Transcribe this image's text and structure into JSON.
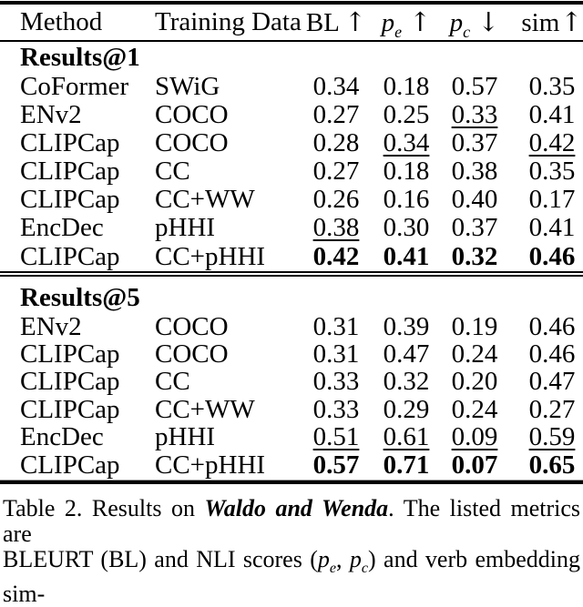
{
  "page": {
    "background": "#ffffff",
    "text_color": "#000000",
    "rule_color": "#000000"
  },
  "table": {
    "columns": [
      {
        "base": "Method",
        "sub": "",
        "arrow": ""
      },
      {
        "base": "Training Data",
        "sub": "",
        "arrow": ""
      },
      {
        "base": "BL",
        "sub": "",
        "arrow": "↑"
      },
      {
        "base": "p",
        "sub": "e",
        "arrow": "↑"
      },
      {
        "base": "p",
        "sub": "c",
        "arrow": "↓"
      },
      {
        "base": "sim",
        "sub": "",
        "arrow": "↑"
      }
    ],
    "sections": [
      {
        "heading": "Results@1",
        "rows": [
          {
            "method": "CoFormer",
            "training": "SWiG",
            "values": [
              {
                "v": "0.34"
              },
              {
                "v": "0.18"
              },
              {
                "v": "0.57"
              },
              {
                "v": "0.35"
              }
            ]
          },
          {
            "method": "ENv2",
            "training": "COCO",
            "values": [
              {
                "v": "0.27"
              },
              {
                "v": "0.25"
              },
              {
                "v": "0.33",
                "u": true
              },
              {
                "v": "0.41"
              }
            ]
          },
          {
            "method": "CLIPCap",
            "training": "COCO",
            "values": [
              {
                "v": "0.28"
              },
              {
                "v": "0.34",
                "u": true
              },
              {
                "v": "0.37"
              },
              {
                "v": "0.42",
                "u": true
              }
            ]
          },
          {
            "method": "CLIPCap",
            "training": "CC",
            "values": [
              {
                "v": "0.27"
              },
              {
                "v": "0.18"
              },
              {
                "v": "0.38"
              },
              {
                "v": "0.35"
              }
            ]
          },
          {
            "method": "CLIPCap",
            "training": "CC+WW",
            "values": [
              {
                "v": "0.26"
              },
              {
                "v": "0.16"
              },
              {
                "v": "0.40"
              },
              {
                "v": "0.17"
              }
            ]
          },
          {
            "method": "EncDec",
            "training": "pHHI",
            "values": [
              {
                "v": "0.38",
                "u": true
              },
              {
                "v": "0.30"
              },
              {
                "v": "0.37"
              },
              {
                "v": "0.41"
              }
            ]
          },
          {
            "method": "CLIPCap",
            "training": "CC+pHHI",
            "values": [
              {
                "v": "0.42",
                "b": true
              },
              {
                "v": "0.41",
                "b": true
              },
              {
                "v": "0.32",
                "b": true
              },
              {
                "v": "0.46",
                "b": true
              }
            ]
          }
        ]
      },
      {
        "heading": "Results@5",
        "rows": [
          {
            "method": "ENv2",
            "training": "COCO",
            "values": [
              {
                "v": "0.31"
              },
              {
                "v": "0.39"
              },
              {
                "v": "0.19"
              },
              {
                "v": "0.46"
              }
            ]
          },
          {
            "method": "CLIPCap",
            "training": "COCO",
            "values": [
              {
                "v": "0.31"
              },
              {
                "v": "0.47"
              },
              {
                "v": "0.24"
              },
              {
                "v": "0.46"
              }
            ]
          },
          {
            "method": "CLIPCap",
            "training": "CC",
            "values": [
              {
                "v": "0.33"
              },
              {
                "v": "0.32"
              },
              {
                "v": "0.20"
              },
              {
                "v": "0.47"
              }
            ]
          },
          {
            "method": "CLIPCap",
            "training": "CC+WW",
            "values": [
              {
                "v": "0.33"
              },
              {
                "v": "0.29"
              },
              {
                "v": "0.24"
              },
              {
                "v": "0.27"
              }
            ]
          },
          {
            "method": "EncDec",
            "training": "pHHI",
            "values": [
              {
                "v": "0.51",
                "u": true
              },
              {
                "v": "0.61",
                "u": true
              },
              {
                "v": "0.09",
                "u": true
              },
              {
                "v": "0.59",
                "u": true
              }
            ]
          },
          {
            "method": "CLIPCap",
            "training": "CC+pHHI",
            "values": [
              {
                "v": "0.57",
                "b": true
              },
              {
                "v": "0.71",
                "b": true
              },
              {
                "v": "0.07",
                "b": true
              },
              {
                "v": "0.65",
                "b": true
              }
            ]
          }
        ]
      }
    ]
  },
  "caption": {
    "prefix": "Table 2. Results on",
    "emph": "Waldo and Wenda",
    "after_emph": ".",
    "line1_rest": "The listed metrics are",
    "line2_part1": "BLEURT (BL) and NLI scores (",
    "pe": {
      "base": "p",
      "sub": "e"
    },
    "comma": ",",
    "pc": {
      "base": "p",
      "sub": "c"
    },
    "line2_part2": ") and verb embedding sim-"
  }
}
